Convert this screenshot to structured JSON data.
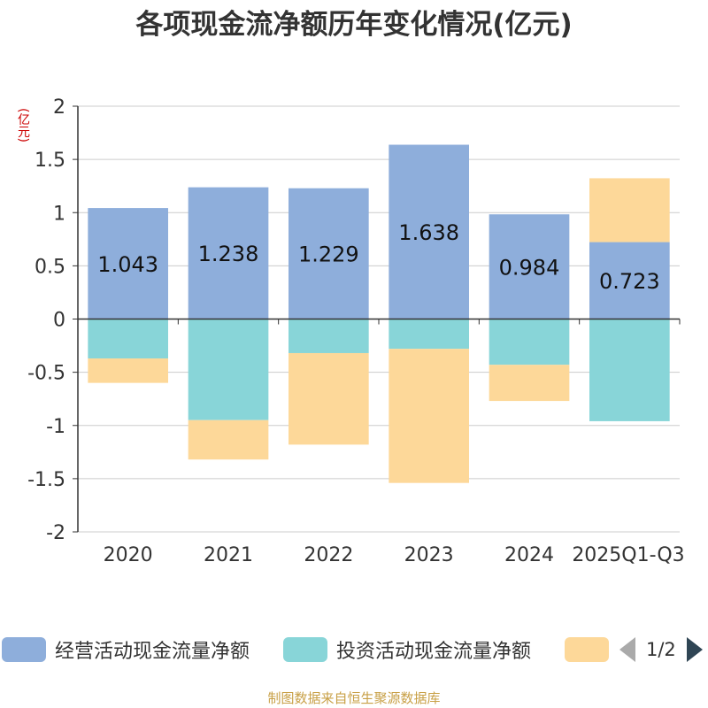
{
  "chart_data": {
    "type": "bar",
    "title": "各项现金流净额历年变化情况(亿元)",
    "ylabel": "(亿元)",
    "categories": [
      "2020",
      "2021",
      "2022",
      "2023",
      "2024",
      "2025Q1-Q3"
    ],
    "ylim": [
      -2,
      2
    ],
    "yticks": [
      2,
      1.5,
      1,
      0.5,
      0,
      -0.5,
      -1,
      -1.5,
      -2
    ],
    "ytick_labels": [
      "2",
      "1.5",
      "1",
      "0.5",
      "0",
      "-0.5",
      "-1",
      "-1.5",
      "-2"
    ],
    "grid": true,
    "stacked": true,
    "series": [
      {
        "name": "经营活动现金流量净额",
        "color": "#8eaedb",
        "values": [
          1.043,
          1.238,
          1.229,
          1.638,
          0.984,
          0.723
        ],
        "labels": [
          "1.043",
          "1.238",
          "1.229",
          "1.638",
          "0.984",
          "0.723"
        ]
      },
      {
        "name": "投资活动现金流量净额",
        "color": "#88d5d8",
        "values": [
          -0.37,
          -0.95,
          -0.32,
          -0.28,
          -0.43,
          -0.96
        ]
      },
      {
        "color": "#fdd899",
        "values": [
          -0.23,
          -0.37,
          -0.86,
          -1.26,
          -0.34,
          0.6
        ]
      }
    ],
    "legend": {
      "placement": "bottom",
      "page": "1/2"
    }
  },
  "source_note": "制图数据来自恒生聚源数据库"
}
